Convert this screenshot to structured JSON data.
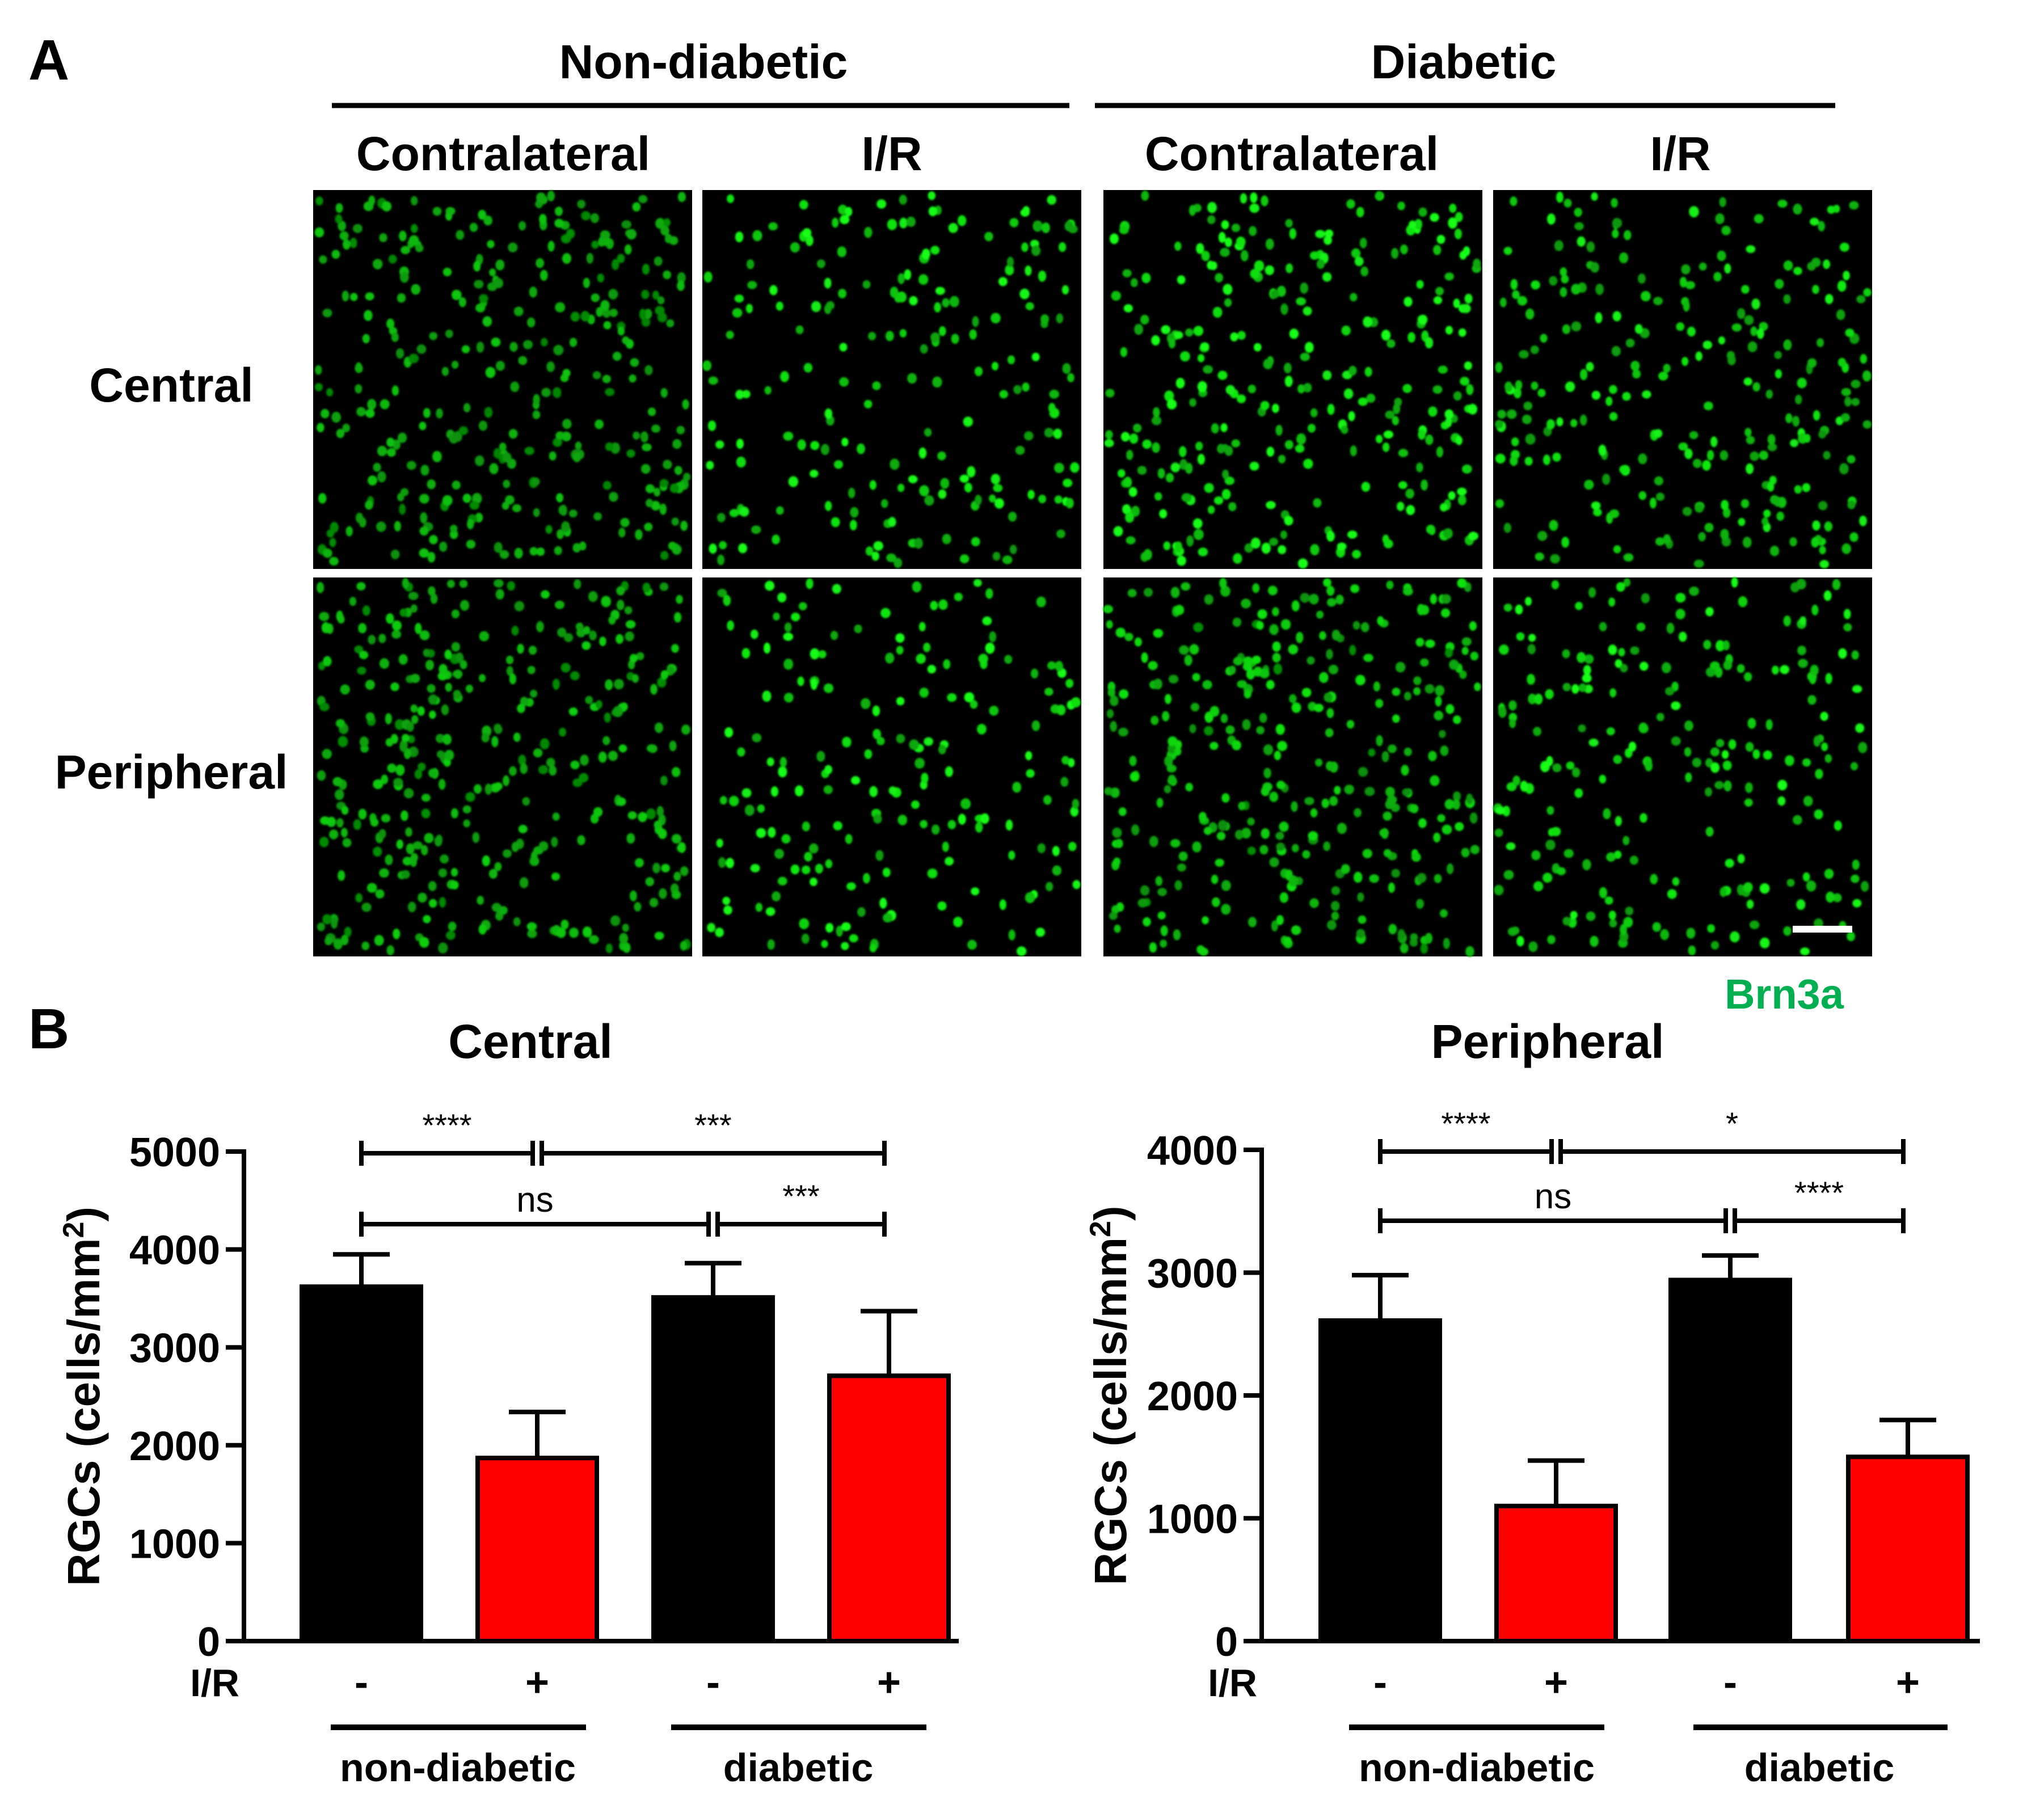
{
  "panel_a": {
    "label": "A",
    "groups": [
      "Non-diabetic",
      "Diabetic"
    ],
    "conditions": [
      "Contralateral",
      "I/R",
      "Contralateral",
      "I/R"
    ],
    "regions": [
      "Central",
      "Peripheral"
    ],
    "stain_label": "Brn3a",
    "stain_color": "#00b050",
    "images": [
      {
        "region": "Central",
        "group": "Non-diabetic",
        "condition": "Contralateral"
      },
      {
        "region": "Central",
        "group": "Non-diabetic",
        "condition": "I/R"
      },
      {
        "region": "Central",
        "group": "Diabetic",
        "condition": "Contralateral"
      },
      {
        "region": "Central",
        "group": "Diabetic",
        "condition": "I/R"
      },
      {
        "region": "Peripheral",
        "group": "Non-diabetic",
        "condition": "Contralateral"
      },
      {
        "region": "Peripheral",
        "group": "Non-diabetic",
        "condition": "I/R"
      },
      {
        "region": "Peripheral",
        "group": "Diabetic",
        "condition": "Contralateral"
      },
      {
        "region": "Peripheral",
        "group": "Diabetic",
        "condition": "I/R"
      }
    ]
  },
  "panel_b": {
    "label": "B",
    "ir_label": "I/R",
    "ir_marks": [
      "-",
      "+",
      "-",
      "+"
    ],
    "group_labels": [
      "non-diabetic",
      "diabetic"
    ]
  },
  "chart_data": [
    {
      "type": "bar",
      "title": "Central",
      "ylabel": "RGCs (cells/mm²)",
      "ylim": [
        0,
        5000
      ],
      "yticks": [
        0,
        1000,
        2000,
        3000,
        4000,
        5000
      ],
      "categories": [
        "non-diabetic -",
        "non-diabetic +",
        "diabetic -",
        "diabetic +"
      ],
      "values": [
        3620,
        1870,
        3510,
        2710
      ],
      "errors": [
        330,
        470,
        350,
        660
      ],
      "bar_colors": [
        "#000000",
        "#ff0000",
        "#000000",
        "#ff0000"
      ],
      "significance": [
        {
          "from": 0,
          "to": 1,
          "label": "****",
          "level": 1
        },
        {
          "from": 1,
          "to": 3,
          "label": "***",
          "level": 1
        },
        {
          "from": 0,
          "to": 2,
          "label": "ns",
          "level": 0
        },
        {
          "from": 2,
          "to": 3,
          "label": "***",
          "level": 0
        }
      ]
    },
    {
      "type": "bar",
      "title": "Peripheral",
      "ylabel": "RGCs (cells/mm²)",
      "ylim": [
        0,
        4000
      ],
      "yticks": [
        0,
        1000,
        2000,
        3000,
        4000
      ],
      "categories": [
        "non-diabetic -",
        "non-diabetic +",
        "diabetic -",
        "diabetic +"
      ],
      "values": [
        2610,
        1100,
        2940,
        1500
      ],
      "errors": [
        370,
        370,
        200,
        300
      ],
      "bar_colors": [
        "#000000",
        "#ff0000",
        "#000000",
        "#ff0000"
      ],
      "significance": [
        {
          "from": 0,
          "to": 1,
          "label": "****",
          "level": 1
        },
        {
          "from": 1,
          "to": 3,
          "label": "*",
          "level": 1
        },
        {
          "from": 0,
          "to": 2,
          "label": "ns",
          "level": 0
        },
        {
          "from": 2,
          "to": 3,
          "label": "****",
          "level": 0
        }
      ]
    }
  ]
}
